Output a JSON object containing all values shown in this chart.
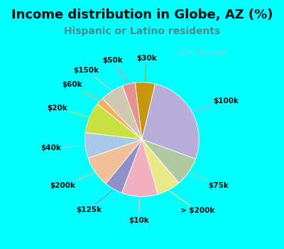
{
  "title": "Income distribution in Globe, AZ (%)",
  "subtitle": "Hispanic or Latino residents",
  "background_color": "#00FFFF",
  "chart_bg_color": "#dff0e8",
  "watermark": "ⓘ City-Data.com",
  "slices": [
    {
      "label": "$30k",
      "value": 5.5,
      "color": "#c8960a"
    },
    {
      "label": "$100k",
      "value": 26.0,
      "color": "#b8acd8"
    },
    {
      "label": "$75k",
      "value": 8.0,
      "color": "#b0c8a0"
    },
    {
      "label": "> $200k",
      "value": 6.5,
      "color": "#e8e888"
    },
    {
      "label": "$10k",
      "value": 10.0,
      "color": "#f0b0c0"
    },
    {
      "label": "$125k",
      "value": 5.0,
      "color": "#9090c8"
    },
    {
      "label": "$200k",
      "value": 8.5,
      "color": "#f0c098"
    },
    {
      "label": "$40k",
      "value": 7.0,
      "color": "#a8c8e8"
    },
    {
      "label": "$20k",
      "value": 8.5,
      "color": "#c8e040"
    },
    {
      "label": "$60k",
      "value": 2.0,
      "color": "#f0b060"
    },
    {
      "label": "$150k",
      "value": 6.5,
      "color": "#d0c8b0"
    },
    {
      "label": "$50k",
      "value": 3.5,
      "color": "#e89090"
    }
  ],
  "title_fontsize": 13,
  "subtitle_fontsize": 10,
  "label_fontsize": 7.5,
  "startangle": 97
}
